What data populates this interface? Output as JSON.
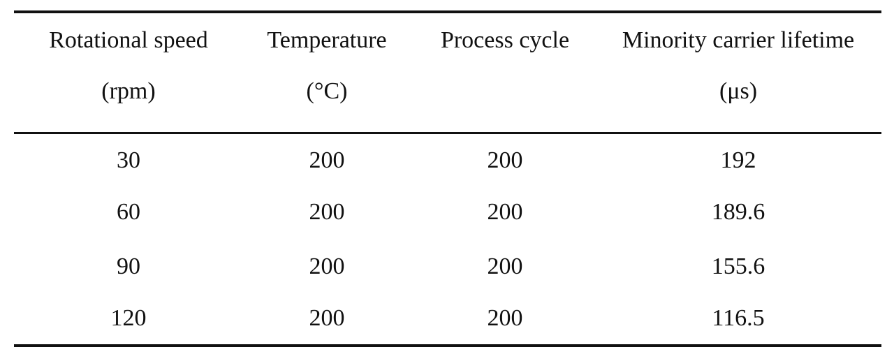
{
  "table": {
    "headers": [
      {
        "line1": "Rotational speed",
        "line2": "(rpm)"
      },
      {
        "line1": "Temperature",
        "line2": "(°C)"
      },
      {
        "line1": "Process cycle",
        "line2": ""
      },
      {
        "line1": "Minority carrier lifetime",
        "line2": "(μs)"
      }
    ],
    "rows": [
      [
        "30",
        "200",
        "200",
        "192"
      ],
      [
        "60",
        "200",
        "200",
        "189.6"
      ],
      [
        "90",
        "200",
        "200",
        "155.6"
      ],
      [
        "120",
        "200",
        "200",
        "116.5"
      ]
    ]
  }
}
